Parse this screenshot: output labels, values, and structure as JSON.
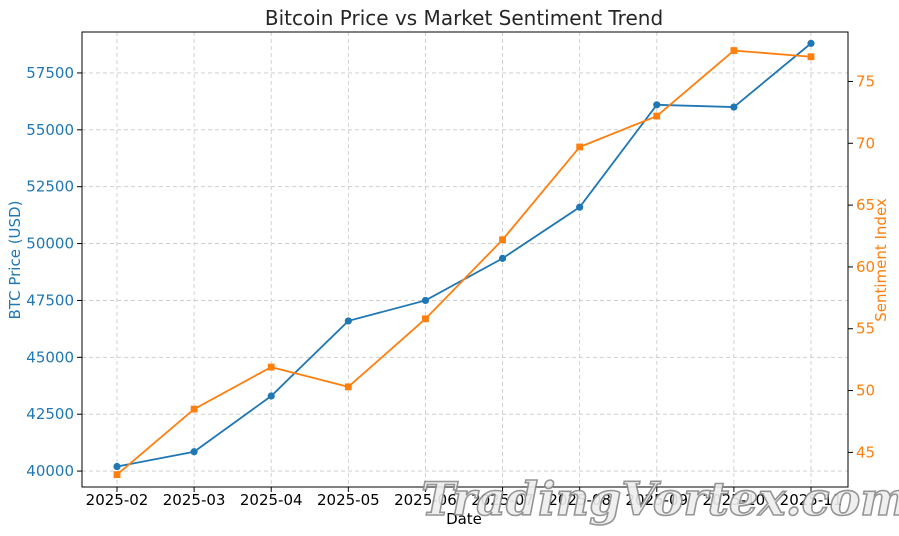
{
  "chart_data": {
    "type": "line",
    "title": "Bitcoin Price vs Market Sentiment Trend",
    "xlabel": "Date",
    "categories": [
      "2025-02",
      "2025-03",
      "2025-04",
      "2025-05",
      "2025-06",
      "2025-07",
      "2025-08",
      "2025-09",
      "2025-10",
      "2025-11"
    ],
    "y_left": {
      "label": "BTC Price (USD)",
      "color": "#1f77b4",
      "ylim": [
        39300,
        59300
      ],
      "ticks": [
        40000,
        42500,
        45000,
        47500,
        50000,
        52500,
        55000,
        57500
      ]
    },
    "y_right": {
      "label": "Sentiment Index",
      "color": "#ff7f0e",
      "ylim": [
        42.2,
        79
      ],
      "ticks": [
        45,
        50,
        55,
        60,
        65,
        70,
        75
      ]
    },
    "series": [
      {
        "axis": "left",
        "color": "#1f77b4",
        "marker": "circle",
        "values": [
          40200,
          40850,
          43300,
          46600,
          47500,
          49350,
          51600,
          56100,
          56000,
          58800
        ]
      },
      {
        "axis": "right",
        "color": "#ff7f0e",
        "marker": "square",
        "values": [
          43.2,
          48.5,
          51.9,
          50.3,
          55.8,
          62.2,
          69.7,
          72.2,
          77.5,
          77.0
        ]
      }
    ],
    "grid": true
  },
  "watermark": "TradingVortex.com"
}
